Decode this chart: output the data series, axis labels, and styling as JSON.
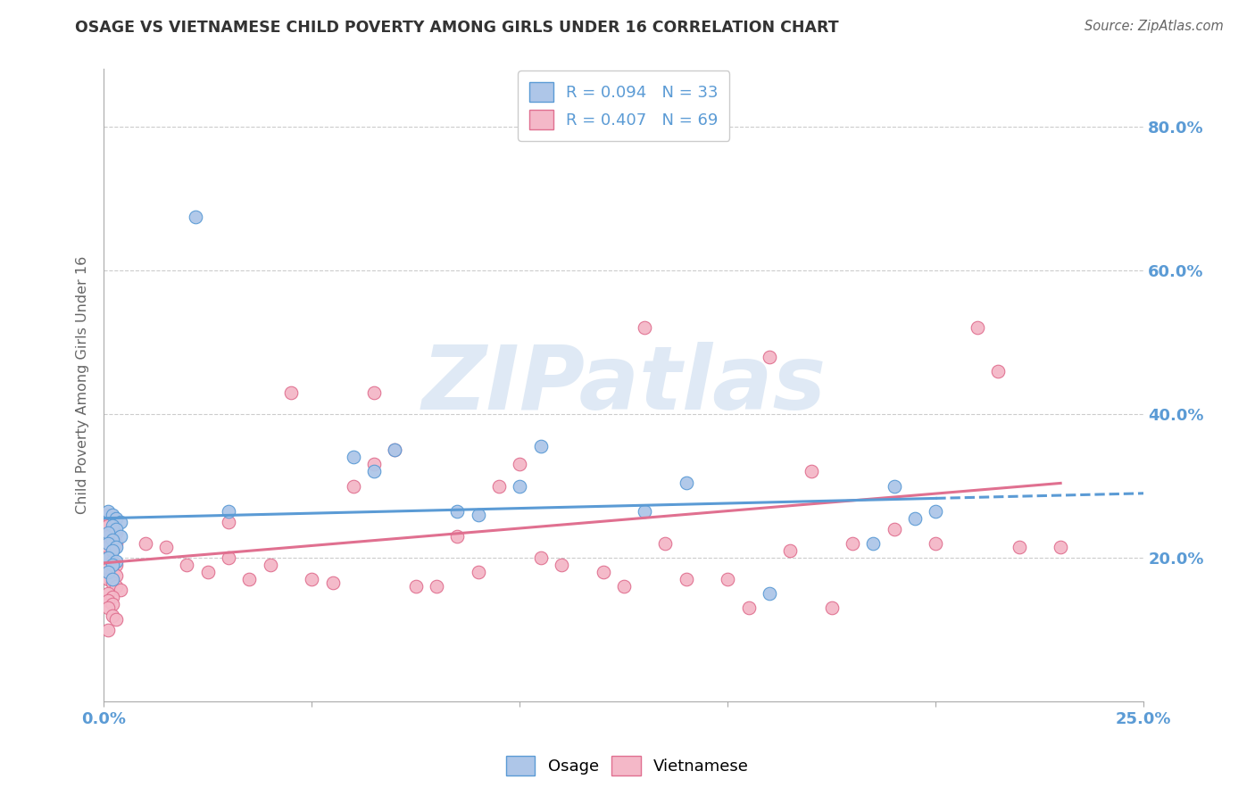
{
  "title": "OSAGE VS VIETNAMESE CHILD POVERTY AMONG GIRLS UNDER 16 CORRELATION CHART",
  "source": "Source: ZipAtlas.com",
  "ylabel": "Child Poverty Among Girls Under 16",
  "xlim": [
    0.0,
    0.25
  ],
  "ylim": [
    0.0,
    0.88
  ],
  "yticks": [
    0.2,
    0.4,
    0.6,
    0.8
  ],
  "ytick_labels": [
    "20.0%",
    "40.0%",
    "60.0%",
    "80.0%"
  ],
  "xticks": [
    0.0,
    0.05,
    0.1,
    0.15,
    0.2,
    0.25
  ],
  "xtick_labels": [
    "0.0%",
    "",
    "",
    "",
    "",
    "25.0%"
  ],
  "watermark": "ZIPatlas",
  "legend_top": [
    {
      "label": "R = 0.094   N = 33",
      "color": "#aec6e8"
    },
    {
      "label": "R = 0.407   N = 69",
      "color": "#f4b8c8"
    }
  ],
  "legend_bottom": [
    {
      "label": "Osage",
      "color": "#aec6e8"
    },
    {
      "label": "Vietnamese",
      "color": "#f4b8c8"
    }
  ],
  "osage_x": [
    0.001,
    0.002,
    0.003,
    0.004,
    0.002,
    0.003,
    0.001,
    0.004,
    0.002,
    0.001,
    0.003,
    0.002,
    0.001,
    0.003,
    0.002,
    0.001,
    0.002,
    0.022,
    0.03,
    0.06,
    0.065,
    0.07,
    0.085,
    0.09,
    0.1,
    0.105,
    0.13,
    0.14,
    0.16,
    0.185,
    0.19,
    0.195,
    0.2
  ],
  "osage_y": [
    0.265,
    0.26,
    0.255,
    0.25,
    0.245,
    0.24,
    0.235,
    0.23,
    0.225,
    0.22,
    0.215,
    0.21,
    0.2,
    0.195,
    0.19,
    0.18,
    0.17,
    0.675,
    0.265,
    0.34,
    0.32,
    0.35,
    0.265,
    0.26,
    0.3,
    0.355,
    0.265,
    0.305,
    0.15,
    0.22,
    0.3,
    0.255,
    0.265
  ],
  "vietnamese_x": [
    0.001,
    0.002,
    0.001,
    0.002,
    0.003,
    0.001,
    0.002,
    0.003,
    0.001,
    0.002,
    0.001,
    0.002,
    0.003,
    0.001,
    0.002,
    0.003,
    0.001,
    0.002,
    0.003,
    0.004,
    0.001,
    0.002,
    0.001,
    0.002,
    0.001,
    0.002,
    0.003,
    0.001,
    0.01,
    0.015,
    0.02,
    0.025,
    0.03,
    0.03,
    0.035,
    0.04,
    0.045,
    0.05,
    0.055,
    0.06,
    0.065,
    0.065,
    0.07,
    0.075,
    0.08,
    0.085,
    0.09,
    0.095,
    0.1,
    0.105,
    0.11,
    0.12,
    0.125,
    0.13,
    0.135,
    0.14,
    0.15,
    0.155,
    0.16,
    0.165,
    0.17,
    0.175,
    0.18,
    0.19,
    0.2,
    0.21,
    0.215,
    0.22,
    0.23
  ],
  "vietnamese_y": [
    0.26,
    0.255,
    0.245,
    0.24,
    0.235,
    0.23,
    0.225,
    0.22,
    0.215,
    0.21,
    0.2,
    0.195,
    0.19,
    0.185,
    0.18,
    0.175,
    0.17,
    0.165,
    0.16,
    0.155,
    0.15,
    0.145,
    0.14,
    0.135,
    0.13,
    0.12,
    0.115,
    0.1,
    0.22,
    0.215,
    0.19,
    0.18,
    0.2,
    0.25,
    0.17,
    0.19,
    0.43,
    0.17,
    0.165,
    0.3,
    0.33,
    0.43,
    0.35,
    0.16,
    0.16,
    0.23,
    0.18,
    0.3,
    0.33,
    0.2,
    0.19,
    0.18,
    0.16,
    0.52,
    0.22,
    0.17,
    0.17,
    0.13,
    0.48,
    0.21,
    0.32,
    0.13,
    0.22,
    0.24,
    0.22,
    0.52,
    0.46,
    0.215,
    0.215
  ],
  "osage_line_color": "#5b9bd5",
  "vietnamese_line_color": "#e07090",
  "osage_dot_facecolor": "#aec6e8",
  "vietnamese_dot_facecolor": "#f4b8c8",
  "osage_dot_edgecolor": "#5b9bd5",
  "vietnamese_dot_edgecolor": "#e07090",
  "background_color": "#ffffff",
  "grid_color": "#cccccc",
  "title_color": "#333333",
  "axis_label_color": "#5b9bd5",
  "watermark_color_zip": "#c5d8ed",
  "watermark_color_atlas": "#c5d8ed"
}
